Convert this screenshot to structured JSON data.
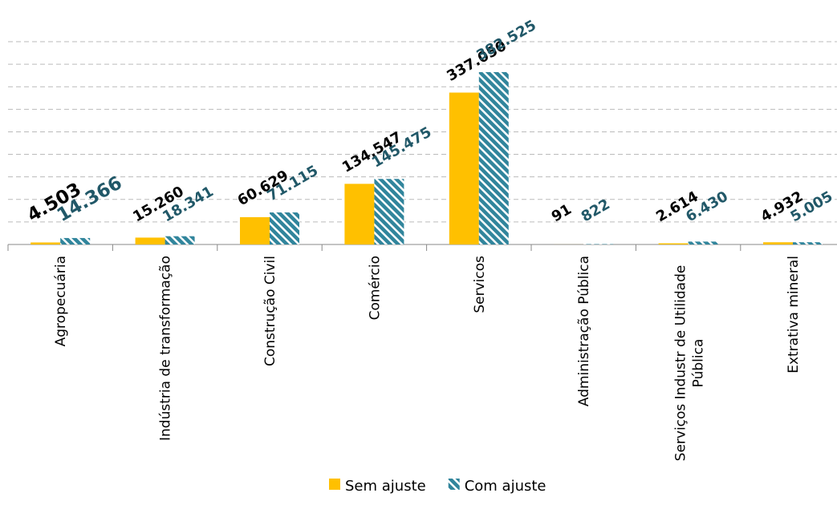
{
  "chart_data": {
    "type": "bar",
    "categories": [
      "Agropecuária",
      "Indústria de transformação",
      "Construção Civil",
      "Comércio",
      "Servicos",
      "Administração Pública",
      "Serviços Industr de Utilidade Pública",
      "Extrativa mineral"
    ],
    "series": [
      {
        "name": "Sem ajuste",
        "color": "#FFC000",
        "values": [
          4503,
          15260,
          60629,
          134547,
          337050,
          91,
          2614,
          4932
        ],
        "value_labels": [
          "4.503",
          "15.260",
          "60.629",
          "134.547",
          "337.050",
          "91",
          "2.614",
          "4.932"
        ]
      },
      {
        "name": "Com ajuste",
        "color": "#31859C",
        "values": [
          14366,
          18341,
          71115,
          145475,
          382525,
          822,
          6430,
          5005
        ],
        "value_labels": [
          "14.366",
          "18.341",
          "71.115",
          "145.475",
          "382.525",
          "822",
          "6.430",
          "5.005"
        ]
      }
    ],
    "ylim": [
      0,
      450000
    ],
    "yticks": [
      0,
      50000,
      100000,
      150000,
      200000,
      250000,
      300000,
      350000,
      400000,
      450000
    ],
    "grid": true,
    "legend": "bottom"
  }
}
